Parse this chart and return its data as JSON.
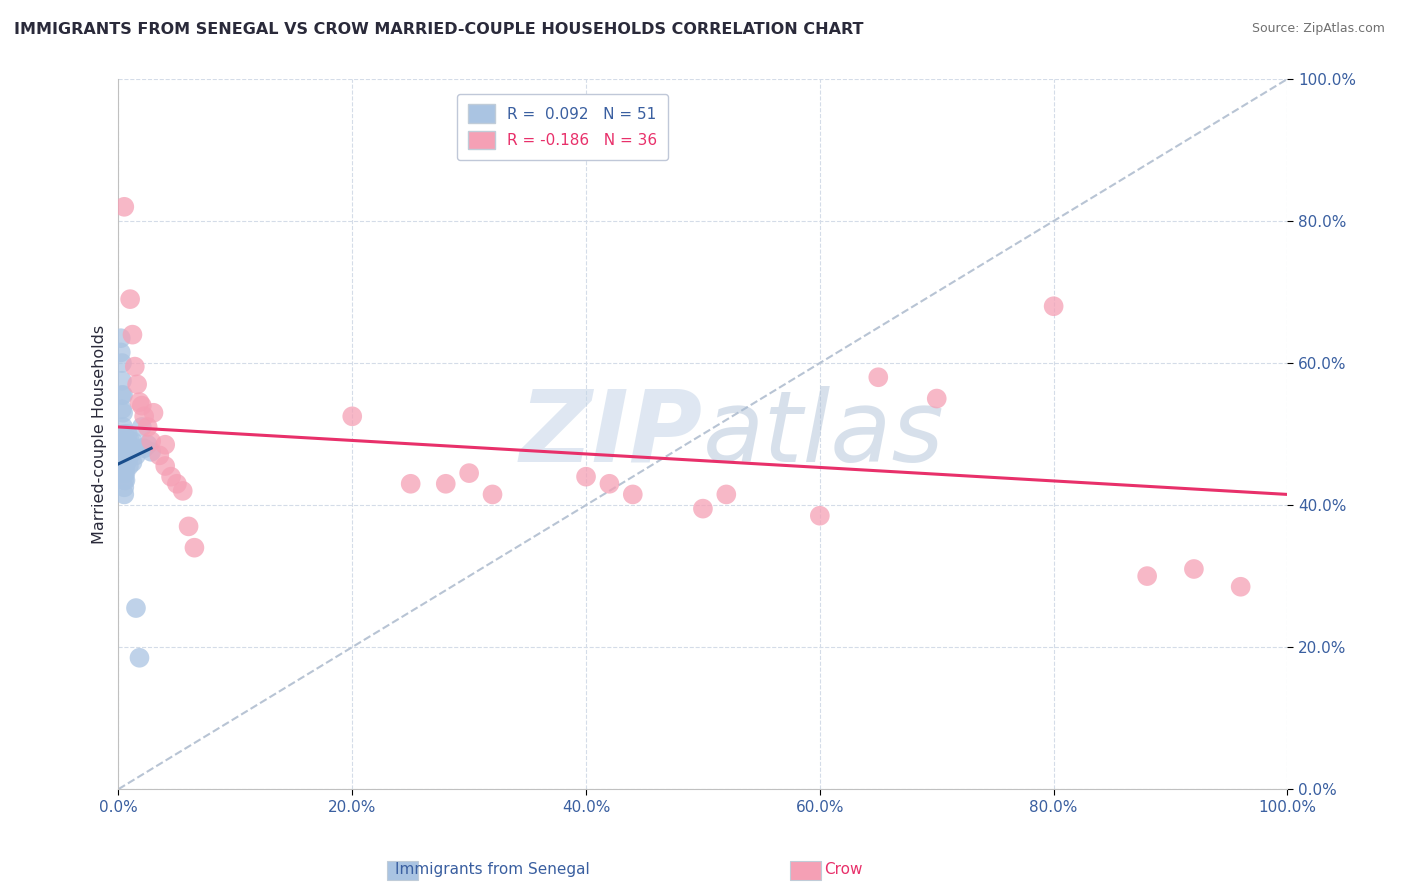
{
  "title": "IMMIGRANTS FROM SENEGAL VS CROW MARRIED-COUPLE HOUSEHOLDS CORRELATION CHART",
  "source": "Source: ZipAtlas.com",
  "xlabel_blue": "Immigrants from Senegal",
  "xlabel_pink": "Crow",
  "ylabel": "Married-couple Households",
  "watermark_zip": "ZIP",
  "watermark_atlas": "atlas",
  "legend_blue_r": "R =  0.092",
  "legend_blue_n": "N = 51",
  "legend_pink_r": "R = -0.186",
  "legend_pink_n": "N = 36",
  "blue_color": "#aac4e2",
  "pink_color": "#f5a0b5",
  "blue_line_color": "#1a4e8c",
  "pink_line_color": "#e8306a",
  "diagonal_color": "#b8c4d4",
  "title_color": "#2a2a3a",
  "axis_label_blue_color": "#3a5fa0",
  "axis_label_pink_color": "#e8306a",
  "tick_color": "#3a5fa0",
  "grid_color": "#d4dce8",
  "background_color": "#ffffff",
  "xlim": [
    0.0,
    1.0
  ],
  "ylim": [
    0.0,
    1.0
  ],
  "xticks": [
    0.0,
    0.2,
    0.4,
    0.6,
    0.8,
    1.0
  ],
  "yticks": [
    0.0,
    0.2,
    0.4,
    0.6,
    0.8,
    1.0
  ],
  "blue_scatter": [
    [
      0.002,
      0.635
    ],
    [
      0.002,
      0.615
    ],
    [
      0.003,
      0.6
    ],
    [
      0.003,
      0.575
    ],
    [
      0.003,
      0.555
    ],
    [
      0.003,
      0.535
    ],
    [
      0.004,
      0.555
    ],
    [
      0.004,
      0.53
    ],
    [
      0.004,
      0.51
    ],
    [
      0.004,
      0.49
    ],
    [
      0.004,
      0.475
    ],
    [
      0.004,
      0.46
    ],
    [
      0.004,
      0.45
    ],
    [
      0.005,
      0.5
    ],
    [
      0.005,
      0.49
    ],
    [
      0.005,
      0.48
    ],
    [
      0.005,
      0.47
    ],
    [
      0.005,
      0.46
    ],
    [
      0.005,
      0.455
    ],
    [
      0.005,
      0.445
    ],
    [
      0.005,
      0.435
    ],
    [
      0.005,
      0.425
    ],
    [
      0.005,
      0.415
    ],
    [
      0.006,
      0.485
    ],
    [
      0.006,
      0.475
    ],
    [
      0.006,
      0.465
    ],
    [
      0.006,
      0.455
    ],
    [
      0.006,
      0.445
    ],
    [
      0.006,
      0.435
    ],
    [
      0.007,
      0.49
    ],
    [
      0.007,
      0.48
    ],
    [
      0.007,
      0.47
    ],
    [
      0.007,
      0.46
    ],
    [
      0.008,
      0.5
    ],
    [
      0.008,
      0.485
    ],
    [
      0.008,
      0.47
    ],
    [
      0.009,
      0.485
    ],
    [
      0.009,
      0.47
    ],
    [
      0.009,
      0.455
    ],
    [
      0.01,
      0.49
    ],
    [
      0.01,
      0.47
    ],
    [
      0.012,
      0.49
    ],
    [
      0.012,
      0.46
    ],
    [
      0.014,
      0.48
    ],
    [
      0.015,
      0.47
    ],
    [
      0.015,
      0.255
    ],
    [
      0.018,
      0.185
    ],
    [
      0.02,
      0.51
    ],
    [
      0.022,
      0.48
    ],
    [
      0.025,
      0.485
    ],
    [
      0.028,
      0.475
    ]
  ],
  "pink_scatter": [
    [
      0.005,
      0.82
    ],
    [
      0.01,
      0.69
    ],
    [
      0.012,
      0.64
    ],
    [
      0.014,
      0.595
    ],
    [
      0.016,
      0.57
    ],
    [
      0.018,
      0.545
    ],
    [
      0.02,
      0.54
    ],
    [
      0.022,
      0.525
    ],
    [
      0.025,
      0.51
    ],
    [
      0.028,
      0.49
    ],
    [
      0.03,
      0.53
    ],
    [
      0.035,
      0.47
    ],
    [
      0.04,
      0.485
    ],
    [
      0.04,
      0.455
    ],
    [
      0.045,
      0.44
    ],
    [
      0.05,
      0.43
    ],
    [
      0.055,
      0.42
    ],
    [
      0.06,
      0.37
    ],
    [
      0.065,
      0.34
    ],
    [
      0.2,
      0.525
    ],
    [
      0.25,
      0.43
    ],
    [
      0.28,
      0.43
    ],
    [
      0.3,
      0.445
    ],
    [
      0.32,
      0.415
    ],
    [
      0.4,
      0.44
    ],
    [
      0.42,
      0.43
    ],
    [
      0.44,
      0.415
    ],
    [
      0.5,
      0.395
    ],
    [
      0.52,
      0.415
    ],
    [
      0.6,
      0.385
    ],
    [
      0.65,
      0.58
    ],
    [
      0.7,
      0.55
    ],
    [
      0.8,
      0.68
    ],
    [
      0.88,
      0.3
    ],
    [
      0.92,
      0.31
    ],
    [
      0.96,
      0.285
    ]
  ],
  "blue_trendline": [
    [
      0.0,
      0.458
    ],
    [
      0.028,
      0.48
    ]
  ],
  "pink_trendline": [
    [
      0.0,
      0.51
    ],
    [
      1.0,
      0.415
    ]
  ]
}
